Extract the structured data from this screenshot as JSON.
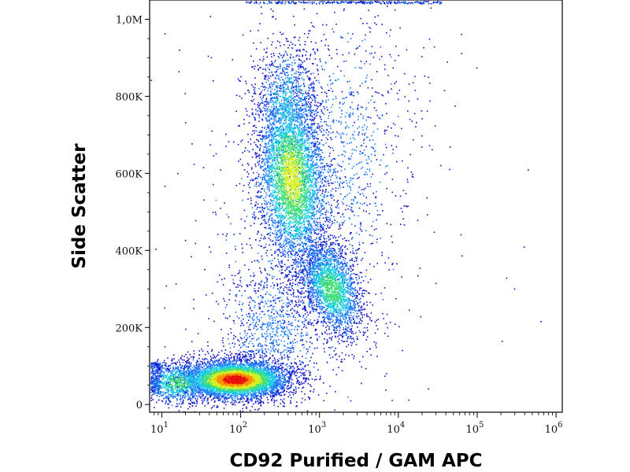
{
  "chart_data": {
    "type": "scatter",
    "subtype": "flow-cytometry density dot plot",
    "xlabel": "CD92 Purified / GAM APC",
    "ylabel": "Side Scatter",
    "x_scale": "log",
    "xlim": [
      7,
      1200000
    ],
    "ylim": [
      -20000,
      1050000
    ],
    "x_ticks": [
      10,
      100,
      1000,
      10000,
      100000,
      1000000
    ],
    "x_tick_labels": [
      {
        "base": "10",
        "exp": "1"
      },
      {
        "base": "10",
        "exp": "2"
      },
      {
        "base": "10",
        "exp": "3"
      },
      {
        "base": "10",
        "exp": "4"
      },
      {
        "base": "10",
        "exp": "5"
      },
      {
        "base": "10",
        "exp": "6"
      }
    ],
    "y_ticks": [
      0,
      200000,
      400000,
      600000,
      800000,
      1000000
    ],
    "y_tick_labels": [
      "0",
      "200K",
      "400K",
      "600K",
      "800K",
      "1,0M"
    ],
    "grid": false,
    "color_scale": [
      "#1010c8",
      "#1f7dff",
      "#18d0e0",
      "#40e070",
      "#d8f020",
      "#ff9000",
      "#e8100c"
    ],
    "populations": [
      {
        "x_center": 100,
        "y_center": 75000,
        "density": "highest"
      },
      {
        "x_center": 500,
        "y_center": 580000,
        "density": "high"
      },
      {
        "x_center": 1800,
        "y_center": 300000,
        "density": "medium"
      }
    ]
  }
}
